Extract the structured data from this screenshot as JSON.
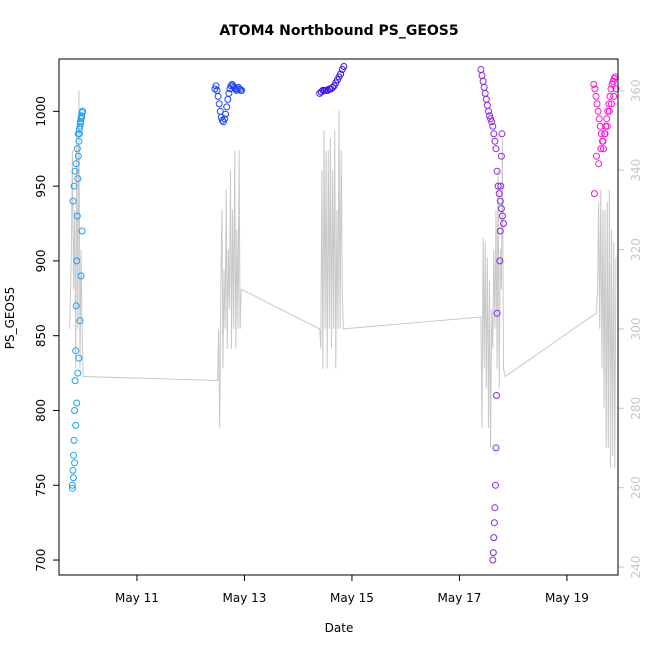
{
  "chart_data": {
    "type": "scatter",
    "title": "ATOM4 Northbound PS_GEOS5",
    "xlabel": "Date",
    "ylabel": "PS_GEOS5",
    "x_range_days": [
      9.55,
      19.95
    ],
    "x_ticks": [
      {
        "day": 11,
        "label": "May 11"
      },
      {
        "day": 13,
        "label": "May 13"
      },
      {
        "day": 15,
        "label": "May 15"
      },
      {
        "day": 17,
        "label": "May 17"
      },
      {
        "day": 19,
        "label": "May 19"
      }
    ],
    "ylim": [
      690,
      1035
    ],
    "y_ticks": [
      700,
      750,
      800,
      850,
      900,
      950,
      1000
    ],
    "y2lim": [
      238,
      368
    ],
    "y2_ticks": [
      240,
      260,
      280,
      300,
      320,
      340,
      360
    ],
    "grid": false,
    "series": [
      {
        "color": "#1E9FF0",
        "x": [
          9.8,
          9.81,
          9.82,
          9.83,
          9.84,
          9.85,
          9.86,
          9.87,
          9.88,
          9.89,
          9.9,
          9.91,
          9.92,
          9.93,
          9.94,
          9.95,
          9.96,
          9.97,
          9.98,
          9.99,
          9.8,
          9.82,
          9.84,
          9.86,
          9.88,
          9.9,
          9.92,
          9.94,
          9.96,
          9.98,
          9.81,
          9.83,
          9.85,
          9.87,
          9.89,
          9.91,
          9.93,
          9.95,
          9.97,
          9.99
        ],
        "y": [
          750,
          760,
          770,
          780,
          800,
          820,
          840,
          870,
          900,
          930,
          955,
          970,
          980,
          985,
          990,
          993,
          995,
          997,
          999,
          1000,
          748,
          755,
          765,
          790,
          805,
          825,
          835,
          860,
          890,
          920,
          940,
          950,
          960,
          965,
          975,
          985,
          988,
          992,
          996,
          1000
        ]
      },
      {
        "color": "#1F45F5",
        "x": [
          12.45,
          12.47,
          12.49,
          12.51,
          12.53,
          12.55,
          12.57,
          12.59,
          12.61,
          12.63,
          12.65,
          12.67,
          12.69,
          12.71,
          12.73,
          12.75,
          12.77,
          12.79,
          12.81,
          12.83,
          12.85,
          12.87,
          12.89,
          12.91,
          12.93,
          12.95
        ],
        "y": [
          1015,
          1017,
          1014,
          1010,
          1005,
          1000,
          996,
          994,
          993,
          995,
          998,
          1003,
          1008,
          1012,
          1015,
          1017,
          1018,
          1017,
          1016,
          1015,
          1014,
          1015,
          1016,
          1015,
          1014,
          1014
        ]
      },
      {
        "color": "#3A10E8",
        "x": [
          14.4,
          14.43,
          14.46,
          14.49,
          14.52,
          14.55,
          14.58,
          14.61,
          14.64,
          14.67,
          14.7,
          14.73,
          14.76,
          14.79,
          14.82,
          14.85
        ],
        "y": [
          1012,
          1013,
          1014,
          1014,
          1014,
          1014,
          1015,
          1015,
          1016,
          1017,
          1019,
          1021,
          1023,
          1025,
          1028,
          1030
        ]
      },
      {
        "color": "#8A28E0",
        "x": [
          17.4,
          17.42,
          17.44,
          17.46,
          17.48,
          17.5,
          17.52,
          17.54,
          17.56,
          17.58,
          17.6,
          17.62,
          17.64,
          17.66,
          17.68,
          17.7,
          17.72,
          17.74,
          17.76,
          17.78,
          17.8,
          17.82,
          17.62,
          17.63,
          17.64,
          17.65,
          17.66,
          17.67,
          17.68,
          17.69,
          17.7,
          17.75,
          17.76,
          17.77,
          17.78,
          17.79
        ],
        "y": [
          1028,
          1024,
          1020,
          1016,
          1012,
          1008,
          1004,
          1000,
          997,
          995,
          993,
          990,
          985,
          980,
          975,
          960,
          950,
          945,
          940,
          935,
          930,
          925,
          700,
          705,
          715,
          725,
          735,
          750,
          775,
          810,
          865,
          900,
          920,
          950,
          970,
          985
        ]
      },
      {
        "color": "#FF10D8",
        "x": [
          19.5,
          19.52,
          19.54,
          19.56,
          19.58,
          19.6,
          19.62,
          19.64,
          19.66,
          19.68,
          19.7,
          19.72,
          19.74,
          19.76,
          19.78,
          19.8,
          19.82,
          19.84,
          19.86,
          19.88,
          19.9,
          19.51,
          19.55,
          19.59,
          19.63,
          19.67,
          19.71,
          19.75,
          19.79,
          19.83,
          19.87,
          19.91
        ],
        "y": [
          1018,
          1015,
          1010,
          1005,
          1000,
          995,
          990,
          985,
          980,
          975,
          985,
          990,
          995,
          1000,
          1005,
          1010,
          1015,
          1018,
          1020,
          1022,
          1023,
          945,
          970,
          965,
          975,
          980,
          985,
          990,
          1000,
          1005,
          1010,
          1015
        ]
      }
    ],
    "altitude_line": {
      "color": "#c8c8c8",
      "x": [
        9.75,
        9.78,
        9.8,
        9.82,
        9.84,
        9.86,
        9.88,
        9.9,
        9.92,
        9.94,
        9.96,
        9.98,
        10.0,
        12.5,
        12.52,
        12.54,
        12.56,
        12.58,
        12.6,
        12.62,
        12.64,
        12.66,
        12.68,
        12.7,
        12.72,
        12.74,
        12.76,
        12.78,
        12.8,
        12.82,
        12.84,
        12.86,
        12.88,
        12.9,
        12.92,
        12.94,
        14.4,
        14.42,
        14.44,
        14.46,
        14.48,
        14.5,
        14.52,
        14.54,
        14.56,
        14.58,
        14.6,
        14.62,
        14.64,
        14.66,
        14.68,
        14.7,
        14.72,
        14.74,
        14.76,
        14.78,
        14.8,
        14.82,
        14.84,
        17.4,
        17.42,
        17.44,
        17.46,
        17.48,
        17.5,
        17.52,
        17.54,
        17.56,
        17.58,
        17.6,
        17.62,
        17.64,
        17.66,
        17.68,
        17.7,
        17.72,
        17.74,
        17.76,
        17.78,
        17.8,
        17.82,
        17.85,
        19.55,
        19.57,
        19.59,
        19.61,
        19.63,
        19.65,
        19.67,
        19.69,
        19.71,
        19.73,
        19.75,
        19.77,
        19.79,
        19.81,
        19.83,
        19.85,
        19.87,
        19.89,
        19.91
      ],
      "y": [
        300,
        320,
        345,
        310,
        330,
        290,
        350,
        300,
        360,
        290,
        320,
        300,
        288,
        287,
        300,
        275,
        310,
        330,
        290,
        315,
        300,
        335,
        295,
        320,
        305,
        340,
        295,
        330,
        300,
        345,
        295,
        325,
        300,
        345,
        300,
        310,
        300,
        295,
        340,
        290,
        350,
        300,
        345,
        290,
        345,
        300,
        348,
        295,
        340,
        300,
        350,
        290,
        330,
        300,
        355,
        300,
        345,
        310,
        300,
        303,
        275,
        323,
        290,
        322,
        285,
        318,
        275,
        312,
        270,
        305,
        295,
        320,
        300,
        330,
        290,
        340,
        285,
        320,
        310,
        348,
        290,
        288,
        304,
        310,
        332,
        300,
        335,
        290,
        330,
        280,
        330,
        270,
        332,
        270,
        335,
        265,
        325,
        268,
        322,
        265,
        318
      ]
    }
  }
}
